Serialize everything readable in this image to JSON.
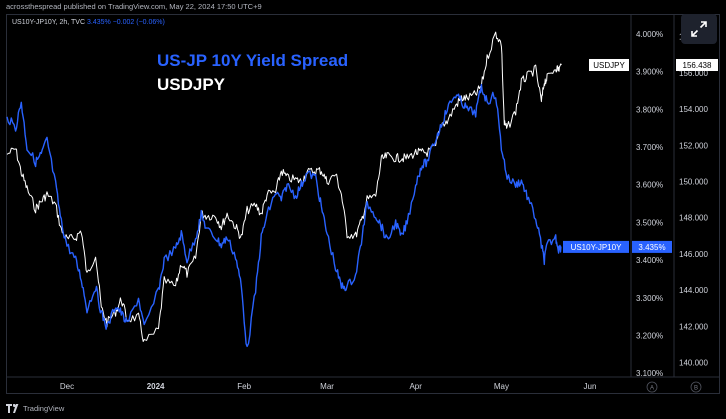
{
  "header": {
    "publish_line": "acrossthespread published on TradingView.com, May 22, 2024 17:50 UTC+9"
  },
  "legend": {
    "symbol": "US10Y-JP10Y, 2h, TVC",
    "value": "3.435%",
    "change": "−0.002 (−0.06%)"
  },
  "footer": {
    "brand": "TradingView"
  },
  "colors": {
    "spread": "#2962ff",
    "usdjpy": "#ffffff",
    "background": "#000000"
  },
  "chart_data": {
    "type": "line",
    "title_lines": [
      "US-JP 10Y Yield Spread",
      "USDJPY"
    ],
    "x_ticks": [
      "Dec",
      "2024",
      "Feb",
      "Mar",
      "Apr",
      "May",
      "Jun"
    ],
    "x_range": [
      "2023-11-10",
      "2024-06-15"
    ],
    "left_scale_label": "",
    "right_scale_2": {
      "ticks": [
        "140.000",
        "142.000",
        "144.000",
        "146.000",
        "148.000",
        "150.000",
        "152.000",
        "154.000",
        "156.000",
        "158.000"
      ],
      "range": [
        139.2,
        159.2
      ]
    },
    "right_scale_1": {
      "ticks": [
        "3.100%",
        "3.200%",
        "3.300%",
        "3.400%",
        "3.500%",
        "3.600%",
        "3.700%",
        "3.800%",
        "3.900%",
        "4.000%"
      ],
      "range": [
        3.09,
        4.05
      ]
    },
    "scale_buttons": [
      "A",
      "B"
    ],
    "last_value_labels": {
      "usdjpy": {
        "name": "USDJPY",
        "value": "156.438"
      },
      "spread": {
        "name": "US10Y-JP10Y",
        "value": "3.435%"
      }
    },
    "series": [
      {
        "name": "US10Y-JP10Y",
        "axis": "percent",
        "points": [
          [
            "2023-11-10",
            3.78
          ],
          [
            "2023-11-13",
            3.75
          ],
          [
            "2023-11-15",
            3.82
          ],
          [
            "2023-11-17",
            3.7
          ],
          [
            "2023-11-20",
            3.66
          ],
          [
            "2023-11-22",
            3.68
          ],
          [
            "2023-11-24",
            3.72
          ],
          [
            "2023-11-27",
            3.6
          ],
          [
            "2023-11-29",
            3.5
          ],
          [
            "2023-12-01",
            3.44
          ],
          [
            "2023-12-04",
            3.4
          ],
          [
            "2023-12-06",
            3.35
          ],
          [
            "2023-12-08",
            3.27
          ],
          [
            "2023-12-11",
            3.33
          ],
          [
            "2023-12-13",
            3.26
          ],
          [
            "2023-12-15",
            3.22
          ],
          [
            "2023-12-18",
            3.28
          ],
          [
            "2023-12-20",
            3.26
          ],
          [
            "2023-12-22",
            3.23
          ],
          [
            "2023-12-26",
            3.3
          ],
          [
            "2023-12-28",
            3.22
          ],
          [
            "2024-01-02",
            3.32
          ],
          [
            "2024-01-04",
            3.4
          ],
          [
            "2024-01-08",
            3.43
          ],
          [
            "2024-01-10",
            3.47
          ],
          [
            "2024-01-12",
            3.4
          ],
          [
            "2024-01-15",
            3.46
          ],
          [
            "2024-01-17",
            3.52
          ],
          [
            "2024-01-19",
            3.48
          ],
          [
            "2024-01-22",
            3.46
          ],
          [
            "2024-01-24",
            3.44
          ],
          [
            "2024-01-26",
            3.46
          ],
          [
            "2024-01-29",
            3.41
          ],
          [
            "2024-01-31",
            3.33
          ],
          [
            "2024-02-02",
            3.16
          ],
          [
            "2024-02-05",
            3.32
          ],
          [
            "2024-02-07",
            3.46
          ],
          [
            "2024-02-09",
            3.52
          ],
          [
            "2024-02-12",
            3.58
          ],
          [
            "2024-02-14",
            3.56
          ],
          [
            "2024-02-16",
            3.6
          ],
          [
            "2024-02-19",
            3.57
          ],
          [
            "2024-02-21",
            3.6
          ],
          [
            "2024-02-23",
            3.63
          ],
          [
            "2024-02-26",
            3.62
          ],
          [
            "2024-02-28",
            3.54
          ],
          [
            "2024-03-01",
            3.47
          ],
          [
            "2024-03-04",
            3.38
          ],
          [
            "2024-03-06",
            3.33
          ],
          [
            "2024-03-08",
            3.33
          ],
          [
            "2024-03-11",
            3.36
          ],
          [
            "2024-03-13",
            3.45
          ],
          [
            "2024-03-15",
            3.55
          ],
          [
            "2024-03-18",
            3.52
          ],
          [
            "2024-03-20",
            3.49
          ],
          [
            "2024-03-22",
            3.45
          ],
          [
            "2024-03-25",
            3.5
          ],
          [
            "2024-03-27",
            3.46
          ],
          [
            "2024-03-29",
            3.5
          ],
          [
            "2024-04-01",
            3.6
          ],
          [
            "2024-04-03",
            3.65
          ],
          [
            "2024-04-05",
            3.66
          ],
          [
            "2024-04-08",
            3.72
          ],
          [
            "2024-04-10",
            3.76
          ],
          [
            "2024-04-12",
            3.8
          ],
          [
            "2024-04-15",
            3.84
          ],
          [
            "2024-04-17",
            3.82
          ],
          [
            "2024-04-19",
            3.8
          ],
          [
            "2024-04-22",
            3.79
          ],
          [
            "2024-04-24",
            3.86
          ],
          [
            "2024-04-26",
            3.82
          ],
          [
            "2024-04-29",
            3.84
          ],
          [
            "2024-05-01",
            3.7
          ],
          [
            "2024-05-03",
            3.62
          ],
          [
            "2024-05-06",
            3.6
          ],
          [
            "2024-05-08",
            3.61
          ],
          [
            "2024-05-10",
            3.57
          ],
          [
            "2024-05-13",
            3.51
          ],
          [
            "2024-05-15",
            3.44
          ],
          [
            "2024-05-16",
            3.4
          ],
          [
            "2024-05-17",
            3.44
          ],
          [
            "2024-05-20",
            3.46
          ],
          [
            "2024-05-21",
            3.43
          ],
          [
            "2024-05-22",
            3.435
          ]
        ]
      },
      {
        "name": "USDJPY",
        "axis": "price",
        "points": [
          [
            "2023-11-10",
            151.5
          ],
          [
            "2023-11-13",
            151.8
          ],
          [
            "2023-11-15",
            150.5
          ],
          [
            "2023-11-17",
            149.6
          ],
          [
            "2023-11-20",
            148.5
          ],
          [
            "2023-11-22",
            148.9
          ],
          [
            "2023-11-24",
            149.3
          ],
          [
            "2023-11-27",
            148.7
          ],
          [
            "2023-11-29",
            147.3
          ],
          [
            "2023-12-01",
            146.8
          ],
          [
            "2023-12-04",
            146.9
          ],
          [
            "2023-12-06",
            147.3
          ],
          [
            "2023-12-08",
            144.8
          ],
          [
            "2023-12-11",
            146.0
          ],
          [
            "2023-12-13",
            143.0
          ],
          [
            "2023-12-15",
            142.2
          ],
          [
            "2023-12-18",
            142.8
          ],
          [
            "2023-12-20",
            143.5
          ],
          [
            "2023-12-22",
            142.4
          ],
          [
            "2023-12-26",
            142.5
          ],
          [
            "2023-12-28",
            141.1
          ],
          [
            "2024-01-02",
            141.8
          ],
          [
            "2024-01-04",
            144.5
          ],
          [
            "2024-01-08",
            144.2
          ],
          [
            "2024-01-10",
            145.5
          ],
          [
            "2024-01-12",
            144.9
          ],
          [
            "2024-01-15",
            145.8
          ],
          [
            "2024-01-17",
            148.2
          ],
          [
            "2024-01-19",
            148.1
          ],
          [
            "2024-01-22",
            148.1
          ],
          [
            "2024-01-24",
            147.5
          ],
          [
            "2024-01-26",
            148.2
          ],
          [
            "2024-01-29",
            147.5
          ],
          [
            "2024-01-31",
            146.9
          ],
          [
            "2024-02-02",
            148.4
          ],
          [
            "2024-02-05",
            148.7
          ],
          [
            "2024-02-07",
            148.2
          ],
          [
            "2024-02-09",
            149.3
          ],
          [
            "2024-02-12",
            149.4
          ],
          [
            "2024-02-14",
            150.6
          ],
          [
            "2024-02-16",
            150.2
          ],
          [
            "2024-02-19",
            150.1
          ],
          [
            "2024-02-21",
            150.0
          ],
          [
            "2024-02-23",
            150.5
          ],
          [
            "2024-02-26",
            150.6
          ],
          [
            "2024-02-28",
            150.6
          ],
          [
            "2024-03-01",
            150.0
          ],
          [
            "2024-03-04",
            150.4
          ],
          [
            "2024-03-06",
            149.3
          ],
          [
            "2024-03-08",
            147.1
          ],
          [
            "2024-03-11",
            147.0
          ],
          [
            "2024-03-13",
            147.8
          ],
          [
            "2024-03-15",
            149.0
          ],
          [
            "2024-03-18",
            149.2
          ],
          [
            "2024-03-20",
            151.2
          ],
          [
            "2024-03-22",
            151.4
          ],
          [
            "2024-03-25",
            151.3
          ],
          [
            "2024-03-27",
            151.3
          ],
          [
            "2024-03-29",
            151.3
          ],
          [
            "2024-04-01",
            151.6
          ],
          [
            "2024-04-03",
            151.6
          ],
          [
            "2024-04-05",
            151.6
          ],
          [
            "2024-04-08",
            151.9
          ],
          [
            "2024-04-10",
            153.2
          ],
          [
            "2024-04-12",
            153.3
          ],
          [
            "2024-04-15",
            154.2
          ],
          [
            "2024-04-17",
            154.6
          ],
          [
            "2024-04-19",
            154.6
          ],
          [
            "2024-04-22",
            154.8
          ],
          [
            "2024-04-24",
            155.3
          ],
          [
            "2024-04-26",
            156.8
          ],
          [
            "2024-04-29",
            158.2
          ],
          [
            "2024-05-01",
            157.6
          ],
          [
            "2024-05-02",
            153.2
          ],
          [
            "2024-05-03",
            152.9
          ],
          [
            "2024-05-06",
            153.9
          ],
          [
            "2024-05-08",
            155.5
          ],
          [
            "2024-05-10",
            155.8
          ],
          [
            "2024-05-13",
            156.2
          ],
          [
            "2024-05-15",
            154.4
          ],
          [
            "2024-05-16",
            155.5
          ],
          [
            "2024-05-17",
            155.7
          ],
          [
            "2024-05-20",
            156.3
          ],
          [
            "2024-05-21",
            156.2
          ],
          [
            "2024-05-22",
            156.438
          ]
        ]
      }
    ]
  }
}
